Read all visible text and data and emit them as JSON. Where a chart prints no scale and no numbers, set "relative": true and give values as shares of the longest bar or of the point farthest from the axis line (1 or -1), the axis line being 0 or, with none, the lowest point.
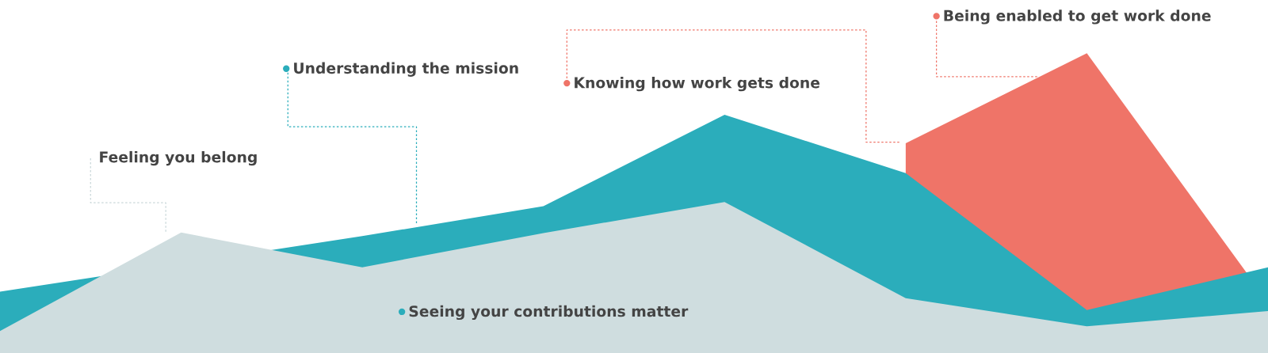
{
  "chart_data": {
    "type": "area",
    "relative": true,
    "categories": [
      null,
      null,
      null,
      null,
      null,
      null,
      null,
      null
    ],
    "series": [
      {
        "color": "#ef7468",
        "values": [
          null,
          null,
          null,
          null,
          null,
          0.7,
          1.0,
          0.17
        ]
      },
      {
        "color": "#2badbb",
        "values": [
          0.205,
          null,
          0.39,
          0.49,
          0.795,
          0.6,
          0.143,
          0.286
        ]
      },
      {
        "color": "#cfdddf",
        "values": [
          0.073,
          0.402,
          0.286,
          0.4,
          0.504,
          0.183,
          0.089,
          0.14
        ]
      }
    ],
    "annotations": [
      "Feeling you belong",
      "Understanding the mission",
      "Knowing how work gets done",
      "Being enabled to get work done",
      "Seeing your contributions matter"
    ]
  }
}
